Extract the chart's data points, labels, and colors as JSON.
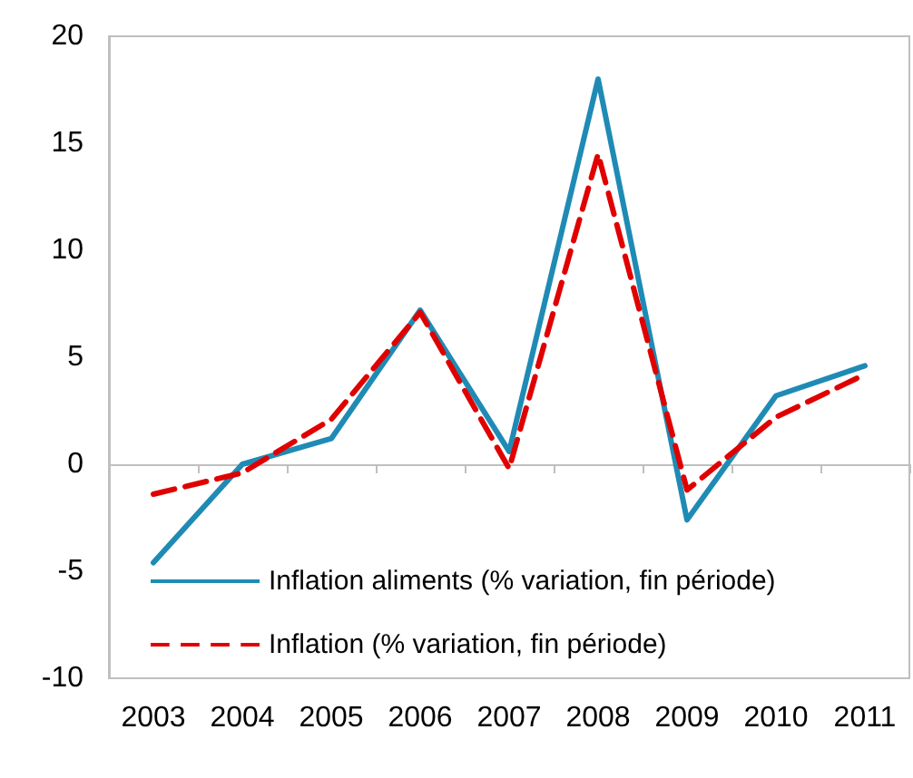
{
  "chart_data": {
    "type": "line",
    "categories": [
      "2003",
      "2004",
      "2005",
      "2006",
      "2007",
      "2008",
      "2009",
      "2010",
      "2011"
    ],
    "series": [
      {
        "name": "Inflation aliments (% variation, fin période)",
        "color": "#1f8bb5",
        "line_style": "solid",
        "values": [
          -4.6,
          0,
          1.2,
          7.2,
          0.6,
          18.0,
          -2.6,
          3.2,
          4.6
        ]
      },
      {
        "name": "Inflation (% variation, fin période)",
        "color": "#e00000",
        "line_style": "dashed",
        "values": [
          -1.4,
          -0.4,
          2.1,
          7.1,
          -0.2,
          14.5,
          -1.2,
          2.2,
          4.2
        ]
      }
    ],
    "ylim": [
      -10,
      20
    ],
    "yticks": [
      -10,
      -5,
      0,
      5,
      10,
      15,
      20
    ],
    "legend": "bottom left",
    "marker": "none"
  }
}
